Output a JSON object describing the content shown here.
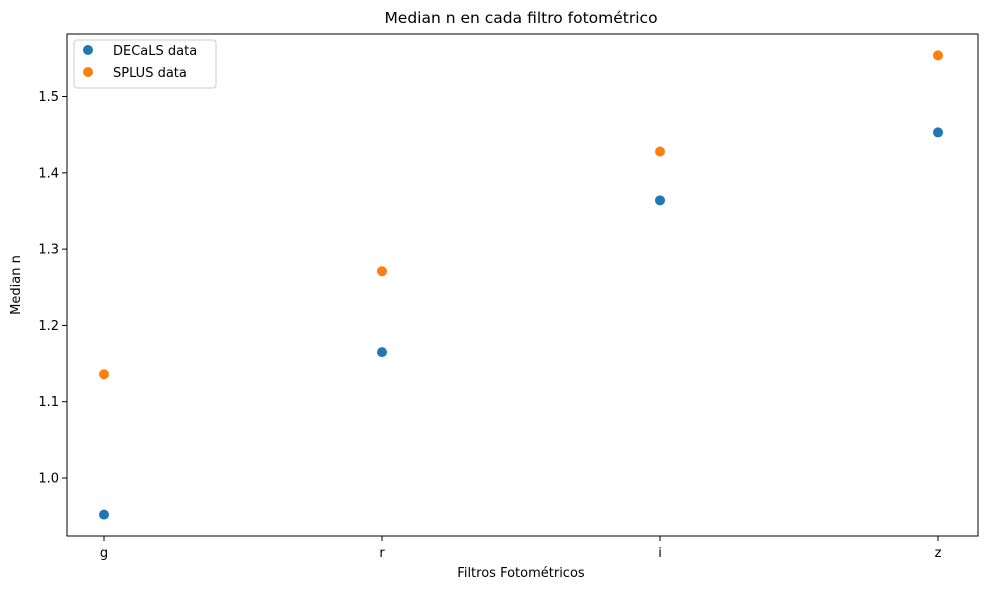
{
  "chart_data": {
    "type": "scatter",
    "title": "Median n en cada filtro fotométrico",
    "xlabel": "Filtros Fotométricos",
    "ylabel": "Median n",
    "categories": [
      "g",
      "r",
      "i",
      "z"
    ],
    "series": [
      {
        "name": "DECaLS data",
        "color": "#1f77b4",
        "values": [
          0.952,
          1.165,
          1.364,
          1.453
        ]
      },
      {
        "name": "SPLUS data",
        "color": "#ff7f0e",
        "values": [
          1.136,
          1.271,
          1.428,
          1.554
        ]
      }
    ],
    "ylim": [
      0.924,
      1.582
    ],
    "yticks": [
      1.0,
      1.1,
      1.2,
      1.3,
      1.4,
      1.5
    ],
    "ytick_labels": [
      "1.0",
      "1.1",
      "1.2",
      "1.3",
      "1.4",
      "1.5"
    ],
    "grid": false,
    "legend_position": "top-left"
  }
}
